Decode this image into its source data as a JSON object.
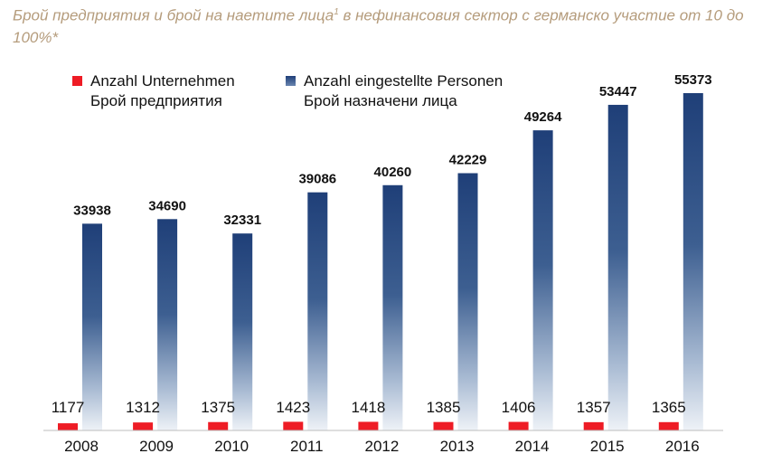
{
  "title": {
    "main": "Брой предприятия и брой на наетите лица",
    "sup": "1",
    "rest": " в нефинансовия сектор с германско участие от 10 до 100%*"
  },
  "legend": {
    "companies": {
      "line1": "Anzahl Unternehmen",
      "line2": "Брой предприятия",
      "color": "#ee1c25"
    },
    "employees": {
      "line1": "Anzahl eingestellte Personen",
      "line2": "Брой назначени лица",
      "color": "#1f3f78"
    }
  },
  "chart_data": {
    "type": "bar",
    "categories": [
      "2008",
      "2009",
      "2010",
      "2011",
      "2012",
      "2013",
      "2014",
      "2015",
      "2016"
    ],
    "series": [
      {
        "name": "Anzahl Unternehmen / Брой предприятия",
        "values": [
          1177,
          1312,
          1375,
          1423,
          1418,
          1385,
          1406,
          1357,
          1365
        ],
        "color": "#ee1c25"
      },
      {
        "name": "Anzahl eingestellte Personen / Брой назначени лица",
        "values": [
          33938,
          34690,
          32331,
          39086,
          40260,
          42229,
          49264,
          53447,
          55373
        ],
        "color": "#1f3f78"
      }
    ],
    "ylim": [
      0,
      57000
    ],
    "grid": false,
    "legend_position": "top-left"
  }
}
